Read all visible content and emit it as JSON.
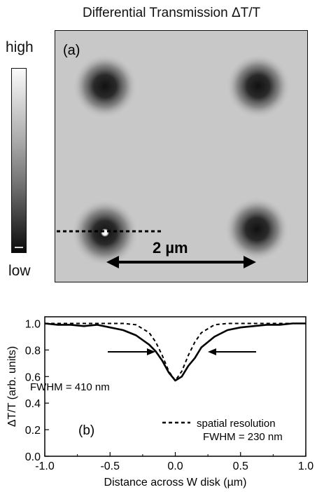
{
  "figure": {
    "title": "Differential Transmission ΔT/T",
    "colorbar": {
      "high_label": "high",
      "low_label": "low"
    },
    "panel_a": {
      "label": "(a)",
      "scale_bar_label": "2 µm"
    },
    "panel_b": {
      "label": "(b)",
      "annotation_fwhm_measured": "FWHM = 410 nm",
      "legend_line1": "spatial resolution",
      "legend_line2": "FWHM = 230 nm"
    }
  },
  "chart_data": {
    "type": "line",
    "xlabel": "Distance across W disk (µm)",
    "ylabel": "ΔT/T (arb. units)",
    "xlim": [
      -1.0,
      1.0
    ],
    "ylim": [
      0.0,
      1.05
    ],
    "xticks": [
      -1.0,
      -0.5,
      0.0,
      0.5,
      1.0
    ],
    "xtick_labels": [
      "-1.0",
      "-0.5",
      "0.0",
      "0.5",
      "1.0"
    ],
    "yticks": [
      0.0,
      0.2,
      0.4,
      0.6,
      0.8,
      1.0
    ],
    "ytick_labels": [
      "0.0",
      "0.2",
      "0.4",
      "0.6",
      "0.8",
      "1.0"
    ],
    "series": [
      {
        "name": "",
        "style": "solid",
        "x": [
          -1.0,
          -0.9,
          -0.8,
          -0.7,
          -0.6,
          -0.5,
          -0.4,
          -0.3,
          -0.2,
          -0.15,
          -0.1,
          -0.05,
          0.0,
          0.05,
          0.1,
          0.15,
          0.2,
          0.3,
          0.4,
          0.5,
          0.6,
          0.7,
          0.8,
          0.9,
          1.0
        ],
        "y": [
          1.0,
          0.99,
          0.99,
          0.98,
          0.99,
          0.97,
          0.95,
          0.91,
          0.84,
          0.79,
          0.72,
          0.63,
          0.57,
          0.6,
          0.68,
          0.74,
          0.82,
          0.9,
          0.95,
          0.97,
          0.98,
          0.99,
          0.99,
          1.0,
          1.0
        ]
      },
      {
        "name": "spatial resolution",
        "style": "dashed",
        "x": [
          -1.0,
          -0.4,
          -0.3,
          -0.2,
          -0.15,
          -0.1,
          -0.05,
          0.0,
          0.05,
          0.1,
          0.15,
          0.2,
          0.3,
          0.4,
          1.0
        ],
        "y": [
          1.0,
          1.0,
          0.99,
          0.93,
          0.86,
          0.76,
          0.64,
          0.57,
          0.64,
          0.76,
          0.86,
          0.93,
          0.99,
          1.0,
          1.0
        ]
      }
    ]
  }
}
